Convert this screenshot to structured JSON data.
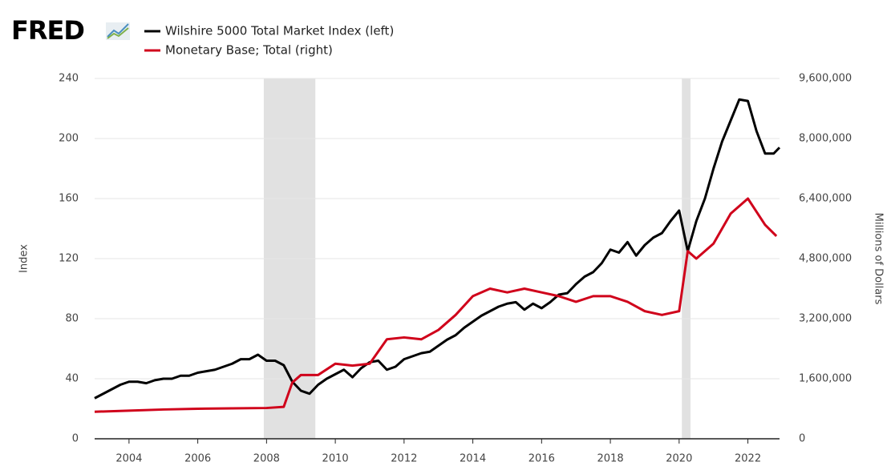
{
  "chart_data": {
    "type": "line",
    "logo": "FRED",
    "xlim": [
      2003,
      2022.92
    ],
    "xticks": [
      2004,
      2006,
      2008,
      2010,
      2012,
      2014,
      2016,
      2018,
      2020,
      2022
    ],
    "ylim": [
      0,
      240
    ],
    "yticks": [
      0,
      40,
      80,
      120,
      160,
      200,
      240
    ],
    "ylabel": "Index",
    "y2lim": [
      0,
      9600000
    ],
    "y2ticks": [
      0,
      {
        "value": 1600000,
        "label": "1,600,000"
      },
      {
        "value": 3200000,
        "label": "3,200,000"
      },
      {
        "value": 4800000,
        "label": "4,800,000"
      },
      {
        "value": 6400000,
        "label": "6,400,000"
      },
      {
        "value": 8000000,
        "label": "8,000,000"
      },
      {
        "value": 9600000,
        "label": "9,600,000"
      }
    ],
    "y2label": "Millions of Dollars",
    "grid": true,
    "recessions": [
      [
        2007.92,
        2009.42
      ],
      [
        2020.08,
        2020.33
      ]
    ],
    "series": [
      {
        "name": "Wilshire 5000 Total Market Index (left)",
        "color": "#000000",
        "x": [
          2003,
          2003.25,
          2003.5,
          2003.75,
          2004,
          2004.25,
          2004.5,
          2004.75,
          2005,
          2005.25,
          2005.5,
          2005.75,
          2006,
          2006.25,
          2006.5,
          2006.75,
          2007,
          2007.25,
          2007.5,
          2007.75,
          2008,
          2008.25,
          2008.5,
          2008.75,
          2009,
          2009.25,
          2009.5,
          2009.75,
          2010,
          2010.25,
          2010.5,
          2010.75,
          2011,
          2011.25,
          2011.5,
          2011.75,
          2012,
          2012.25,
          2012.5,
          2012.75,
          2013,
          2013.25,
          2013.5,
          2013.75,
          2014,
          2014.25,
          2014.5,
          2014.75,
          2015,
          2015.25,
          2015.5,
          2015.75,
          2016,
          2016.25,
          2016.5,
          2016.75,
          2017,
          2017.25,
          2017.5,
          2017.75,
          2018,
          2018.25,
          2018.5,
          2018.75,
          2019,
          2019.25,
          2019.5,
          2019.75,
          2020,
          2020.25,
          2020.5,
          2020.75,
          2021,
          2021.25,
          2021.5,
          2021.75,
          2022,
          2022.25,
          2022.5,
          2022.75,
          2022.92
        ],
        "values": [
          27,
          30,
          33,
          36,
          38,
          38,
          37,
          39,
          40,
          40,
          42,
          42,
          44,
          45,
          46,
          48,
          50,
          53,
          53,
          56,
          52,
          52,
          49,
          38,
          32,
          30,
          36,
          40,
          43,
          46,
          41,
          47,
          51,
          52,
          46,
          48,
          53,
          55,
          57,
          58,
          62,
          66,
          69,
          74,
          78,
          82,
          85,
          88,
          90,
          91,
          86,
          90,
          87,
          91,
          96,
          97,
          103,
          108,
          111,
          117,
          126,
          124,
          131,
          122,
          129,
          134,
          137,
          145,
          152,
          125,
          145,
          160,
          180,
          198,
          212,
          226,
          225,
          205,
          190,
          190,
          194
        ]
      },
      {
        "name": "Monetary Base; Total (right)",
        "color": "#d0021b",
        "axis": "y2",
        "x": [
          2003,
          2004,
          2005,
          2006,
          2007,
          2008,
          2008.5,
          2008.75,
          2009,
          2009.5,
          2010,
          2010.5,
          2011,
          2011.5,
          2012,
          2012.5,
          2013,
          2013.5,
          2014,
          2014.5,
          2015,
          2015.5,
          2016,
          2016.5,
          2017,
          2017.5,
          2018,
          2018.5,
          2019,
          2019.5,
          2020,
          2020.25,
          2020.5,
          2021,
          2021.5,
          2022,
          2022.5,
          2022.83
        ],
        "values": [
          720000,
          750000,
          780000,
          800000,
          810000,
          820000,
          850000,
          1500000,
          1700000,
          1700000,
          2000000,
          1950000,
          2000000,
          2650000,
          2700000,
          2650000,
          2900000,
          3300000,
          3800000,
          4000000,
          3900000,
          4000000,
          3900000,
          3800000,
          3650000,
          3800000,
          3800000,
          3650000,
          3400000,
          3300000,
          3400000,
          5000000,
          4800000,
          5200000,
          6000000,
          6400000,
          5700000,
          5400000
        ]
      }
    ]
  }
}
